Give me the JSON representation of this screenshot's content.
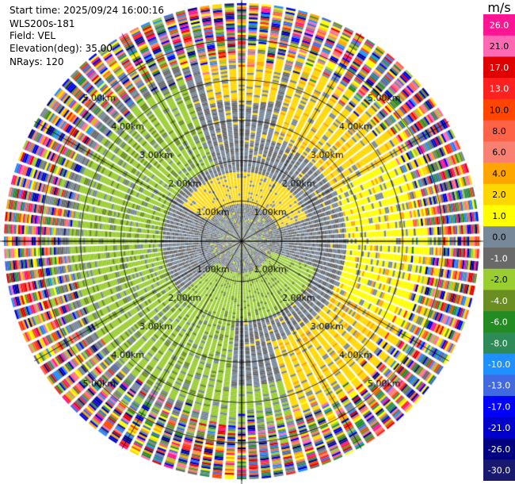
{
  "info": {
    "start_time": "Start time: 2025/09/24 16:00:16",
    "instrument": "WLS200s-181",
    "field": "Field: VEL",
    "elevation": "Elevation(deg): 35.00",
    "nrays": "NRays: 120"
  },
  "colorbar": {
    "unit": "m/s",
    "labels": [
      "26.0",
      "21.0",
      "17.0",
      "13.0",
      "10.0",
      "8.0",
      "6.0",
      "4.0",
      "2.0",
      "1.0",
      "0.0",
      "-1.0",
      "-2.0",
      "-4.0",
      "-6.0",
      "-8.0",
      "-10.0",
      "-13.0",
      "-17.0",
      "-21.0",
      "-26.0",
      "-30.0"
    ],
    "colors": [
      "#ff1493",
      "#ff69b4",
      "#e00000",
      "#ff2020",
      "#ff4500",
      "#ff6347",
      "#fa8072",
      "#ffa500",
      "#ffd700",
      "#ffff00",
      "#778899",
      "#696969",
      "#9acd32",
      "#6b8e23",
      "#228b22",
      "#2e8b57",
      "#1e90ff",
      "#4169e1",
      "#0000ff",
      "#0000cd",
      "#000080",
      "#191970"
    ]
  },
  "chart_data": {
    "type": "heatmap",
    "projection": "polar PPI",
    "field": "VEL",
    "units": "m/s",
    "n_rays": 120,
    "elevation_deg": 35.0,
    "range_rings_km": [
      1.0,
      2.0,
      3.0,
      4.0,
      5.0
    ],
    "ring_labels": [
      "1.00km",
      "2.00km",
      "3.00km",
      "4.00km",
      "5.00km"
    ],
    "max_range_km": 5.9,
    "spokes_deg": [
      0,
      30,
      60,
      90,
      120,
      150,
      180,
      210,
      240,
      270,
      300,
      330
    ],
    "velocity_range": [
      -30.0,
      26.0
    ],
    "radial_velocity_pattern": {
      "inner_core_0_to_1_2km": "gray, near 0 m/s, mixed",
      "yellow_arc_1_to_2km": "north-northwest to north-northeast, 2 to 4 m/s",
      "green_arc_1_to_2km": "south-southeast, -1 to -2 m/s",
      "outer_band_2_to_4_5km": "yellow in the east and northeast, 2 to 4 m/s; green in the west and southwest, -1 to -4 m/s",
      "beyond_4_5km": "noisy, all colors"
    }
  }
}
